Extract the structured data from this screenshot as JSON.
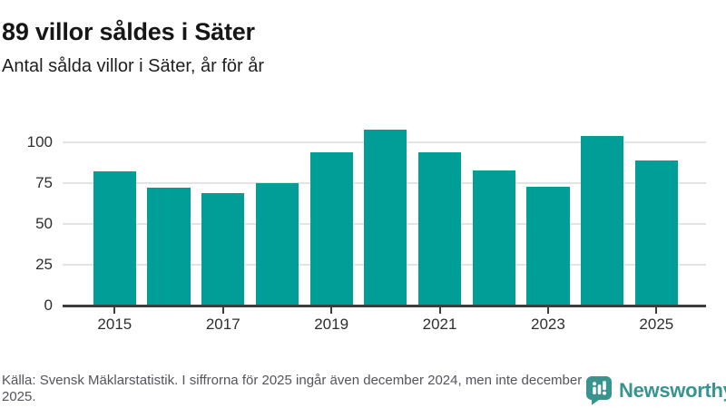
{
  "header": {
    "title": "89 villor såldes i Säter",
    "subtitle": "Antal sålda villor i Säter, år för år"
  },
  "chart_data": {
    "type": "bar",
    "categories": [
      "2015",
      "2016",
      "2017",
      "2018",
      "2019",
      "2020",
      "2021",
      "2022",
      "2023",
      "2024",
      "2025"
    ],
    "values": [
      82,
      72,
      69,
      75,
      94,
      108,
      94,
      83,
      73,
      104,
      89
    ],
    "title": "89 villor såldes i Säter",
    "subtitle": "Antal sålda villor i Säter, år för år",
    "xlabel": "",
    "ylabel": "",
    "ylim": [
      0,
      110
    ],
    "yticks": [
      0,
      25,
      50,
      75,
      100
    ],
    "xticks_shown": [
      "2015",
      "2017",
      "2019",
      "2021",
      "2023",
      "2025"
    ],
    "bar_color": "#009e96",
    "gridline_color": "#e4e4e4",
    "axis_color": "#3d3d3d",
    "grid": true,
    "legend": "none"
  },
  "footer": {
    "source_text": "Källa: Svensk Mäklarstatistik. I siffrorna för 2025 ingår även december 2024, men inte december 2025.",
    "brand": {
      "name": "Newsworthy",
      "color": "#39938e"
    }
  }
}
